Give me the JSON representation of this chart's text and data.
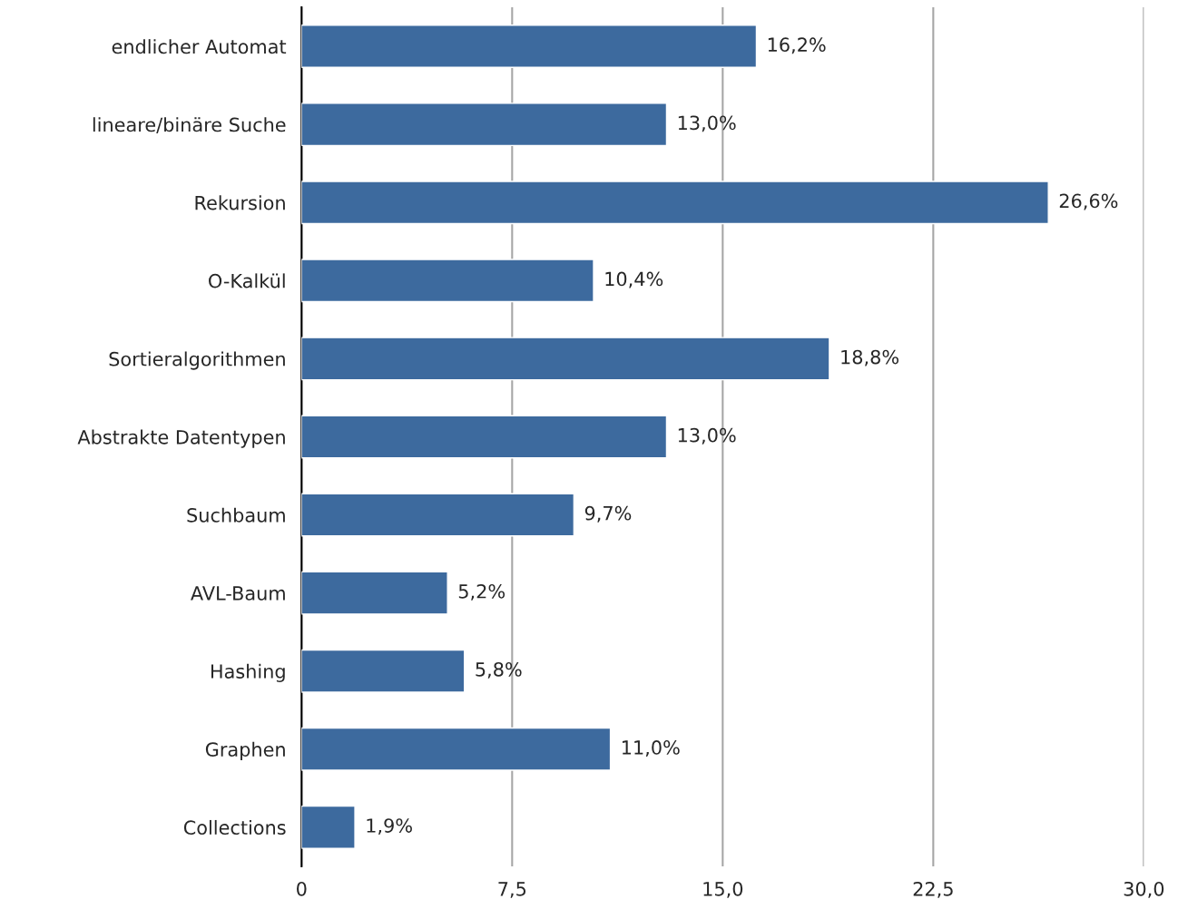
{
  "chart_data": {
    "type": "bar",
    "orientation": "horizontal",
    "categories": [
      "endlicher Automat",
      "lineare/binäre Suche",
      "Rekursion",
      "O-Kalkül",
      "Sortieralgorithmen",
      "Abstrakte Datentypen",
      "Suchbaum",
      "AVL-Baum",
      "Hashing",
      "Graphen",
      "Collections"
    ],
    "values": [
      16.2,
      13.0,
      26.6,
      10.4,
      18.8,
      13.0,
      9.7,
      5.2,
      5.8,
      11.0,
      1.9
    ],
    "value_labels": [
      "16,2%",
      "13,0%",
      "26,6%",
      "10,4%",
      "18,8%",
      "13,0%",
      "9,7%",
      "5,2%",
      "5,8%",
      "11,0%",
      "1,9%"
    ],
    "color": "#3d6a9e",
    "xlim": [
      0,
      30
    ],
    "xticks": [
      0,
      {
        "value": 7.5,
        "label": "7,5"
      },
      {
        "value": 15,
        "label": "15,0"
      },
      {
        "value": 22.5,
        "label": "22,5"
      },
      {
        "value": 30,
        "label": "30,0"
      }
    ],
    "grid": "x"
  }
}
